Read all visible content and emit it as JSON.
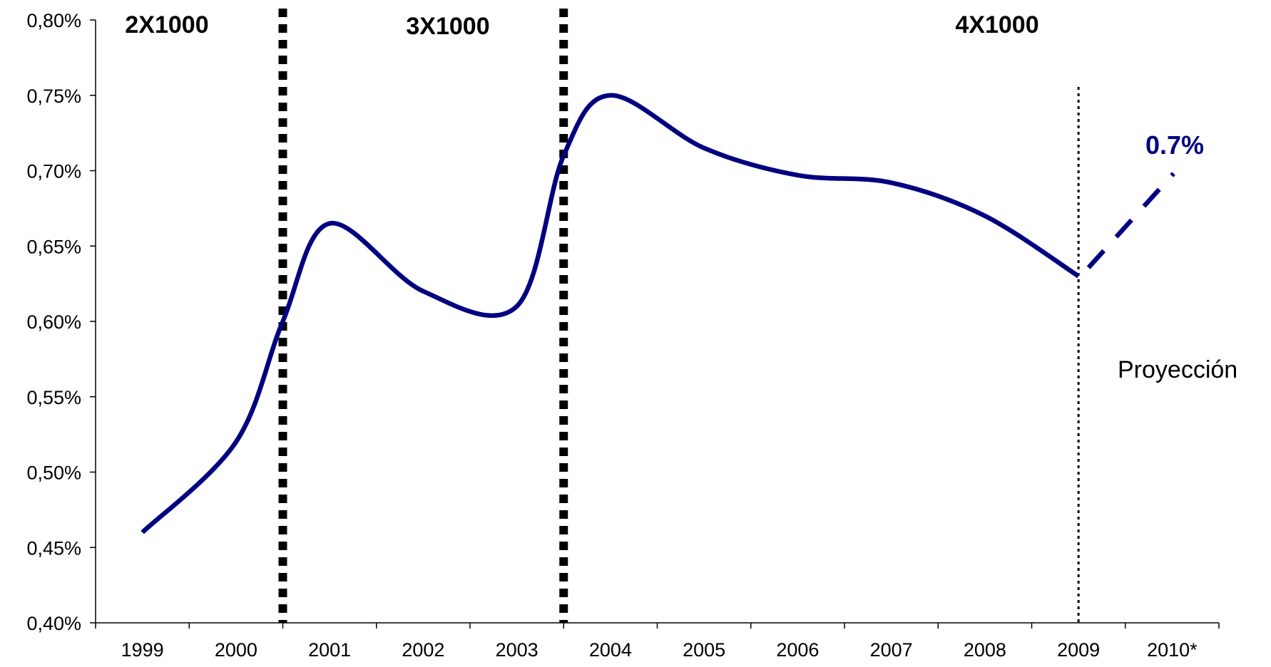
{
  "chart_data": {
    "type": "line",
    "title": "",
    "xlabel": "",
    "ylabel": "",
    "categories": [
      "1999",
      "2000",
      "2001",
      "2002",
      "2003",
      "2004",
      "2005",
      "2006",
      "2007",
      "2008",
      "2009",
      "2010*"
    ],
    "ylim": [
      0.4,
      0.8
    ],
    "yticks": [
      0.4,
      0.45,
      0.5,
      0.55,
      0.6,
      0.65,
      0.7,
      0.75,
      0.8
    ],
    "ytick_labels": [
      "0,40%",
      "0,45%",
      "0,50%",
      "0,55%",
      "0,60%",
      "0,65%",
      "0,70%",
      "0,75%",
      "0,80%"
    ],
    "grid": false,
    "legend": "none",
    "series": [
      {
        "style": "solid",
        "color": "#000080",
        "points": [
          {
            "x": "1999",
            "y": 0.46
          },
          {
            "x": "2000",
            "y": 0.52
          },
          {
            "x": "2000.5",
            "y": 0.6
          },
          {
            "x": "2001",
            "y": 0.665
          },
          {
            "x": "2002",
            "y": 0.62
          },
          {
            "x": "2003",
            "y": 0.61
          },
          {
            "x": "2003.5",
            "y": 0.71
          },
          {
            "x": "2004",
            "y": 0.75
          },
          {
            "x": "2005",
            "y": 0.715
          },
          {
            "x": "2006",
            "y": 0.697
          },
          {
            "x": "2007",
            "y": 0.692
          },
          {
            "x": "2008",
            "y": 0.67
          },
          {
            "x": "2009",
            "y": 0.63
          }
        ]
      },
      {
        "style": "dashed",
        "color": "#000080",
        "points": [
          {
            "x": "2009",
            "y": 0.63
          },
          {
            "x": "2010*",
            "y": 0.7
          }
        ]
      }
    ],
    "regime_dividers": [
      {
        "x": "2000.5",
        "style": "thick-dotted"
      },
      {
        "x": "2003.5",
        "style": "thick-dotted"
      }
    ],
    "projection_divider": {
      "x": "2009",
      "style": "thin-dotted"
    },
    "annotations": {
      "regime_1": "2X1000",
      "regime_2": "3X1000",
      "regime_3": "4X1000",
      "projection_label": "Proyección",
      "projection_value": "0.7%"
    }
  }
}
